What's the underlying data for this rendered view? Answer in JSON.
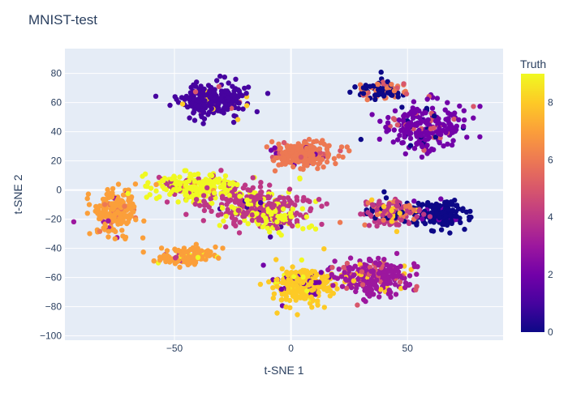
{
  "chart_data": {
    "type": "scatter",
    "title": "MNIST-test",
    "xlabel": "t-SNE 1",
    "ylabel": "t-SNE 2",
    "xlim": [
      -97,
      91
    ],
    "ylim": [
      -103,
      97
    ],
    "x_ticks": [
      -50,
      0,
      50
    ],
    "y_ticks": [
      -100,
      -80,
      -60,
      -40,
      -20,
      0,
      20,
      40,
      60,
      80
    ],
    "grid": true,
    "background_color": "#e5ecf6",
    "colorbar": {
      "title": "Truth",
      "range": [
        0,
        9
      ],
      "ticks": [
        0,
        2,
        4,
        6,
        8
      ],
      "colorscale": [
        "#0d0887",
        "#46039f",
        "#7201a8",
        "#9c179e",
        "#bd3786",
        "#d8576b",
        "#ed7953",
        "#fb9f3a",
        "#fdca26",
        "#f0f921"
      ]
    },
    "clusters": [
      {
        "label": 1,
        "center": [
          -33,
          62
        ],
        "spread": [
          13,
          10
        ],
        "n": 260,
        "mix": [
          [
            1,
            0.93
          ],
          [
            8,
            0.05
          ],
          [
            5,
            0.02
          ]
        ]
      },
      {
        "label": 6,
        "center": [
          5,
          25
        ],
        "spread": [
          12,
          8
        ],
        "n": 230,
        "mix": [
          [
            6,
            0.9
          ],
          [
            5,
            0.06
          ],
          [
            2,
            0.04
          ]
        ]
      },
      {
        "label": 0,
        "center": [
          40,
          68
        ],
        "spread": [
          10,
          6
        ],
        "n": 100,
        "mix": [
          [
            0,
            0.55
          ],
          [
            6,
            0.35
          ],
          [
            5,
            0.1
          ]
        ]
      },
      {
        "label": 2,
        "center": [
          57,
          42
        ],
        "spread": [
          15,
          15
        ],
        "n": 230,
        "mix": [
          [
            2,
            0.86
          ],
          [
            0,
            0.07
          ],
          [
            5,
            0.07
          ]
        ]
      },
      {
        "label": 0,
        "center": [
          65,
          -16
        ],
        "spread": [
          10,
          9
        ],
        "n": 160,
        "mix": [
          [
            0,
            0.92
          ],
          [
            2,
            0.08
          ]
        ]
      },
      {
        "label": 4,
        "center": [
          42,
          -15
        ],
        "spread": [
          11,
          8
        ],
        "n": 170,
        "mix": [
          [
            4,
            0.6
          ],
          [
            6,
            0.15
          ],
          [
            8,
            0.15
          ],
          [
            0,
            0.1
          ]
        ]
      },
      {
        "label": 7,
        "center": [
          -75,
          -15
        ],
        "spread": [
          8,
          14
        ],
        "n": 200,
        "mix": [
          [
            7,
            0.88
          ],
          [
            6,
            0.08
          ],
          [
            3,
            0.04
          ]
        ]
      },
      {
        "label": 9,
        "center": [
          -40,
          2
        ],
        "spread": [
          17,
          8
        ],
        "n": 260,
        "mix": [
          [
            9,
            0.82
          ],
          [
            4,
            0.15
          ],
          [
            7,
            0.03
          ]
        ]
      },
      {
        "label": 4,
        "center": [
          -15,
          -10
        ],
        "spread": [
          18,
          12
        ],
        "n": 280,
        "mix": [
          [
            4,
            0.72
          ],
          [
            9,
            0.22
          ],
          [
            1,
            0.06
          ]
        ]
      },
      {
        "label": 9,
        "center": [
          -5,
          -20
        ],
        "spread": [
          12,
          8
        ],
        "n": 90,
        "mix": [
          [
            9,
            0.7
          ],
          [
            4,
            0.3
          ]
        ]
      },
      {
        "label": 7,
        "center": [
          -45,
          -45
        ],
        "spread": [
          12,
          6
        ],
        "n": 110,
        "mix": [
          [
            7,
            0.82
          ],
          [
            9,
            0.1
          ],
          [
            4,
            0.08
          ]
        ]
      },
      {
        "label": 8,
        "center": [
          5,
          -65
        ],
        "spread": [
          12,
          12
        ],
        "n": 260,
        "mix": [
          [
            8,
            0.82
          ],
          [
            2,
            0.1
          ],
          [
            9,
            0.08
          ]
        ]
      },
      {
        "label": 3,
        "center": [
          35,
          -60
        ],
        "spread": [
          15,
          10
        ],
        "n": 250,
        "mix": [
          [
            3,
            0.72
          ],
          [
            5,
            0.18
          ],
          [
            8,
            0.1
          ]
        ]
      }
    ]
  }
}
